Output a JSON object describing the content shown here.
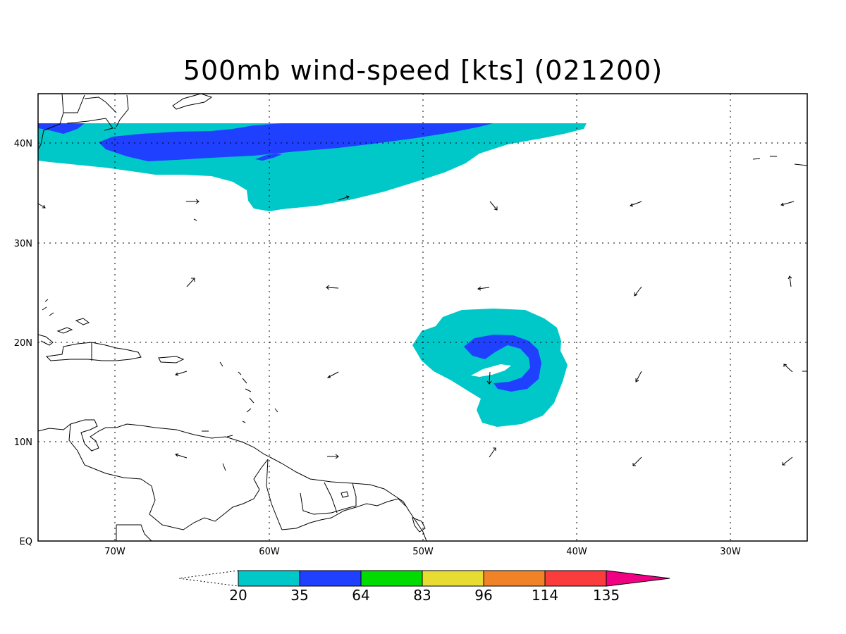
{
  "title": "500mb wind-speed [kts] (021200)",
  "map": {
    "lon_range": [
      -75,
      -25
    ],
    "lat_range": [
      0,
      45
    ],
    "lon_ticks": [
      {
        "value": -70,
        "label": "70W"
      },
      {
        "value": -60,
        "label": "60W"
      },
      {
        "value": -50,
        "label": "50W"
      },
      {
        "value": -40,
        "label": "40W"
      },
      {
        "value": -30,
        "label": "30W"
      }
    ],
    "lat_ticks": [
      {
        "value": 0,
        "label": "EQ"
      },
      {
        "value": 10,
        "label": "10N"
      },
      {
        "value": 20,
        "label": "20N"
      },
      {
        "value": 30,
        "label": "30N"
      },
      {
        "value": 40,
        "label": "40N"
      }
    ],
    "gridlines": "dotted",
    "level_colors": {
      "20-35": "#00c8c8",
      "35-64": "#2040ff"
    }
  },
  "colorbar": {
    "boundaries": [
      "20",
      "35",
      "64",
      "83",
      "96",
      "114",
      "135"
    ],
    "colors": [
      "#00c8c8",
      "#2040ff",
      "#00dc00",
      "#e6dc32",
      "#f08228",
      "#fa3c3c",
      "#f00082"
    ],
    "below_fill": "none",
    "above_fill": "#f00082"
  }
}
